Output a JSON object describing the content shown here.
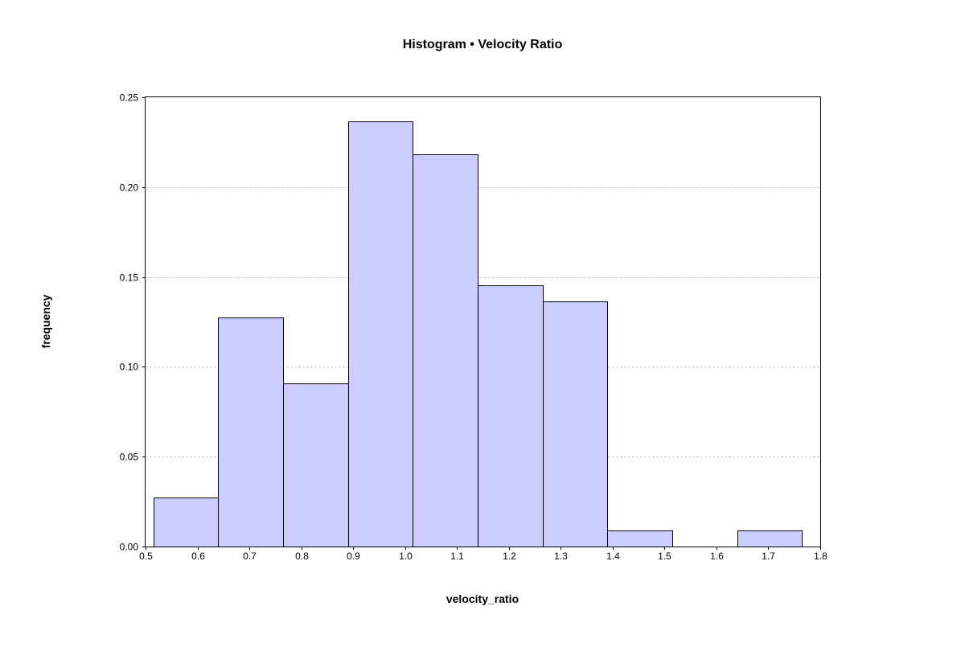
{
  "chart_data": {
    "type": "bar",
    "title": "Histogram • Velocity Ratio",
    "xlabel": "velocity_ratio",
    "ylabel": "frequency",
    "xlim": [
      0.5,
      1.8
    ],
    "ylim": [
      0,
      0.25
    ],
    "x_ticks": [
      0.5,
      0.6,
      0.7,
      0.8,
      0.9,
      1.0,
      1.1,
      1.2,
      1.3,
      1.4,
      1.5,
      1.6,
      1.7,
      1.8
    ],
    "x_tick_labels": [
      "0.5",
      "0.6",
      "0.7",
      "0.8",
      "0.9",
      "1.0",
      "1.1",
      "1.2",
      "1.3",
      "1.4",
      "1.5",
      "1.6",
      "1.7",
      "1.8"
    ],
    "y_ticks": [
      0,
      0.05,
      0.1,
      0.15,
      0.2,
      0.25
    ],
    "y_tick_labels": [
      "0.00",
      "0.05",
      "0.10",
      "0.15",
      "0.20",
      "0.25"
    ],
    "grid": true,
    "bar_color": "#ccccff",
    "bins": [
      {
        "start": 0.515,
        "end": 0.64,
        "value": 0.0273
      },
      {
        "start": 0.64,
        "end": 0.765,
        "value": 0.1273
      },
      {
        "start": 0.765,
        "end": 0.89,
        "value": 0.0909
      },
      {
        "start": 0.89,
        "end": 1.015,
        "value": 0.2364
      },
      {
        "start": 1.015,
        "end": 1.14,
        "value": 0.2182
      },
      {
        "start": 1.14,
        "end": 1.265,
        "value": 0.1455
      },
      {
        "start": 1.265,
        "end": 1.39,
        "value": 0.1364
      },
      {
        "start": 1.39,
        "end": 1.515,
        "value": 0.0091
      },
      {
        "start": 1.515,
        "end": 1.64,
        "value": 0.0
      },
      {
        "start": 1.64,
        "end": 1.765,
        "value": 0.0091
      }
    ]
  }
}
